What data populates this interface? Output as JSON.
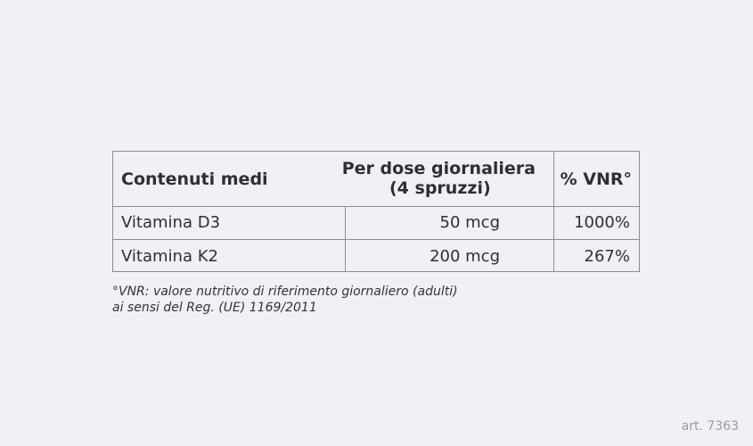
{
  "table": {
    "headers": [
      "Contenuti medi",
      "Per dose giornaliera",
      "(4 spruzzi)",
      "% VNR°"
    ],
    "rows": [
      {
        "name": "Vitamina D3",
        "dose": "50 mcg",
        "vnr": "1000%"
      },
      {
        "name": "Vitamina K2",
        "dose": "200 mcg",
        "vnr": "267%"
      }
    ]
  },
  "footnote": [
    "°VNR: valore nutritivo di riferimento giornaliero (adulti)",
    "ai sensi del Reg. (UE) 1169/2011"
  ],
  "article": "art. 7363"
}
